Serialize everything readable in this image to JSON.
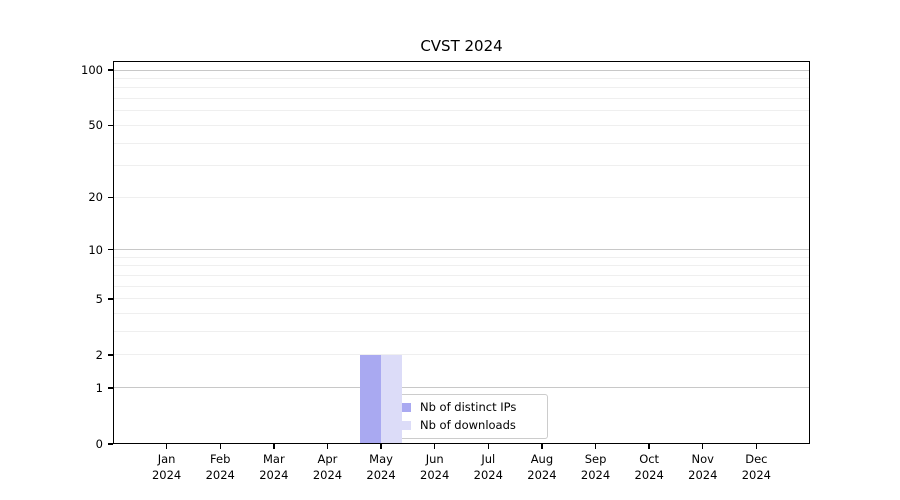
{
  "chart_data": {
    "type": "bar",
    "title": "CVST 2024",
    "months": [
      "Jan",
      "Feb",
      "Mar",
      "Apr",
      "May",
      "Jun",
      "Jul",
      "Aug",
      "Sep",
      "Oct",
      "Nov",
      "Dec"
    ],
    "year": "2024",
    "categories": [
      "Jan 2024",
      "Feb 2024",
      "Mar 2024",
      "Apr 2024",
      "May 2024",
      "Jun 2024",
      "Jul 2024",
      "Aug 2024",
      "Sep 2024",
      "Oct 2024",
      "Nov 2024",
      "Dec 2024"
    ],
    "series": [
      {
        "name": "Nb of distinct IPs",
        "color": "#a9a9f1",
        "values": [
          0,
          0,
          0,
          0,
          2,
          0,
          0,
          0,
          0,
          0,
          0,
          0
        ]
      },
      {
        "name": "Nb of downloads",
        "color": "#dcdcf8",
        "values": [
          0,
          0,
          0,
          0,
          2,
          0,
          0,
          0,
          0,
          0,
          0,
          0
        ]
      }
    ],
    "scale": "log1p",
    "ylim": [
      0,
      112
    ],
    "yticks": [
      0,
      1,
      2,
      5,
      10,
      20,
      50,
      100
    ],
    "yticklabels": [
      "0",
      "1",
      "2",
      "5",
      "10",
      "20",
      "50",
      "100"
    ],
    "grid": {
      "major": [
        1,
        10,
        100
      ],
      "minor": [
        2,
        3,
        4,
        5,
        6,
        7,
        8,
        9,
        20,
        30,
        40,
        50,
        60,
        70,
        80,
        90
      ]
    },
    "legend": {
      "entries": [
        "Nb of distinct IPs",
        "Nb of downloads"
      ],
      "position": "inside lower-center"
    },
    "xlabel": "",
    "ylabel": "",
    "axis_color": "#000000",
    "grid_major_color": "#c8c8c8",
    "grid_minor_color": "#efefef",
    "background_color": "#ffffff"
  }
}
